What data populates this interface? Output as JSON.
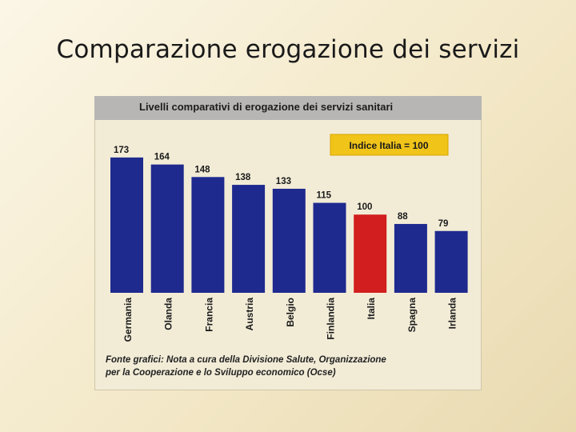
{
  "slide": {
    "title": "Comparazione erogazione dei servizi"
  },
  "chart_data": {
    "type": "bar",
    "title": "Livelli comparativi di erogazione dei servizi sanitari",
    "annotation": "Indice Italia = 100",
    "categories": [
      "Germania",
      "Olanda",
      "Francia",
      "Austria",
      "Belgio",
      "Finlandia",
      "Italia",
      "Spagna",
      "Irlanda"
    ],
    "values": [
      173,
      164,
      148,
      138,
      133,
      115,
      100,
      88,
      79
    ],
    "highlight_category": "Italia",
    "colors": {
      "bar": "#1e2a8e",
      "highlight": "#d21e1e",
      "annotation_box": "#f0c419",
      "header": "#b7b6b4"
    },
    "ylim": [
      0,
      180
    ],
    "grid": false,
    "legend": "none"
  },
  "source": {
    "line1": "Fonte grafici: Nota a cura della Divisione Salute, Organizzazione",
    "line2": "per la Cooperazione e lo Sviluppo economico (Ocse)"
  }
}
